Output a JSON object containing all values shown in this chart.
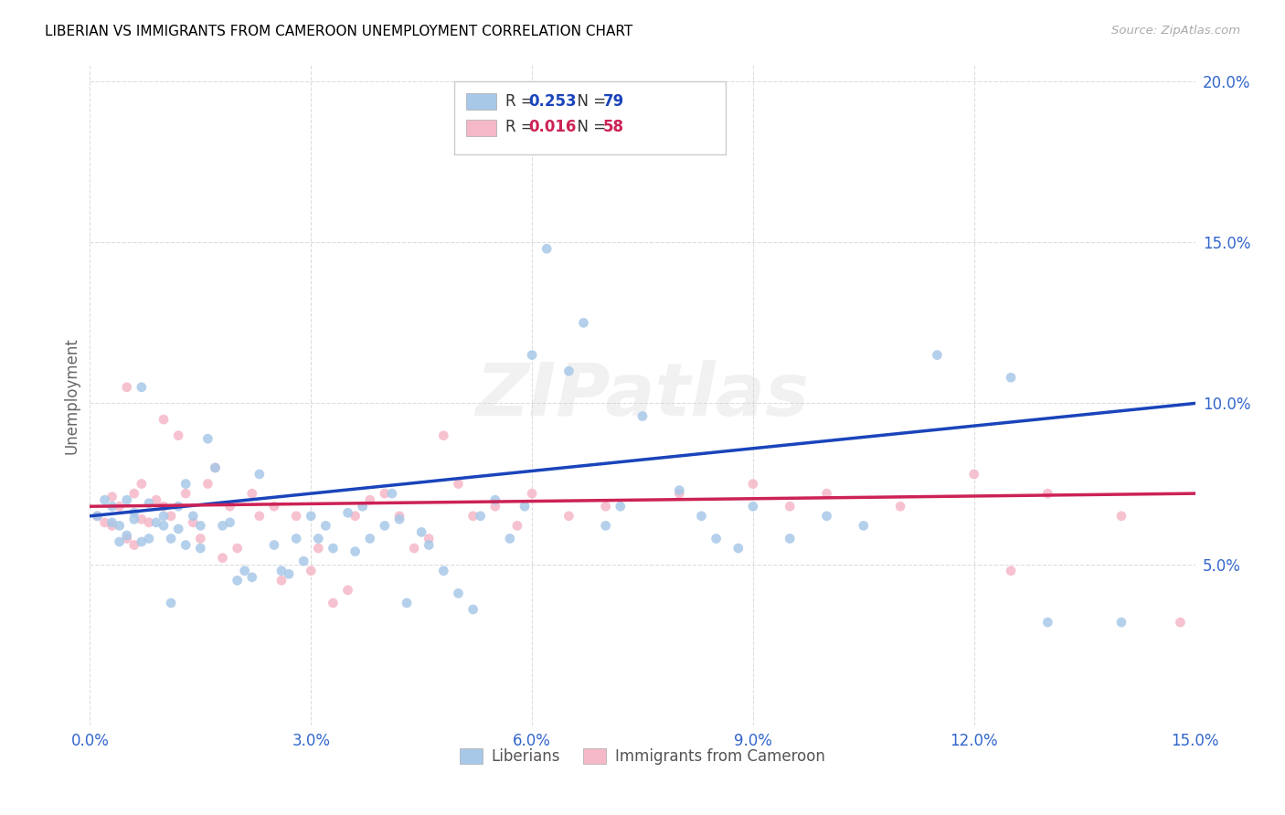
{
  "title": "LIBERIAN VS IMMIGRANTS FROM CAMEROON UNEMPLOYMENT CORRELATION CHART",
  "source": "Source: ZipAtlas.com",
  "ylabel": "Unemployment",
  "xlim": [
    0.0,
    0.15
  ],
  "ylim": [
    0.0,
    0.205
  ],
  "xticks": [
    0.0,
    0.03,
    0.06,
    0.09,
    0.12,
    0.15
  ],
  "xtick_labels": [
    "0.0%",
    "3.0%",
    "6.0%",
    "9.0%",
    "12.0%",
    "15.0%"
  ],
  "yticks_right": [
    0.05,
    0.1,
    0.15,
    0.2
  ],
  "ytick_labels_right": [
    "5.0%",
    "10.0%",
    "15.0%",
    "20.0%"
  ],
  "legend_entries": [
    "Liberians",
    "Immigrants from Cameroon"
  ],
  "r_liberians": 0.253,
  "n_liberians": 79,
  "r_cameroon": 0.016,
  "n_cameroon": 58,
  "color_liberians": "#a8c8e8",
  "color_cameroon": "#f5b8c8",
  "line_color_liberians": "#1a44bb",
  "line_color_cameroon": "#cc2255",
  "marker_size": 60,
  "watermark": "ZIPatlas",
  "lib_trendline_x0": 0.0,
  "lib_trendline_y0": 0.065,
  "lib_trendline_x1": 0.15,
  "lib_trendline_y1": 0.1,
  "cam_trendline_x0": 0.0,
  "cam_trendline_y0": 0.068,
  "cam_trendline_x1": 0.15,
  "cam_trendline_y1": 0.072,
  "liberians_x": [
    0.001,
    0.002,
    0.003,
    0.003,
    0.004,
    0.004,
    0.005,
    0.005,
    0.006,
    0.006,
    0.007,
    0.007,
    0.008,
    0.008,
    0.009,
    0.01,
    0.01,
    0.011,
    0.011,
    0.012,
    0.012,
    0.013,
    0.013,
    0.014,
    0.015,
    0.015,
    0.016,
    0.017,
    0.018,
    0.019,
    0.02,
    0.021,
    0.022,
    0.023,
    0.025,
    0.026,
    0.027,
    0.028,
    0.029,
    0.03,
    0.031,
    0.032,
    0.033,
    0.035,
    0.036,
    0.037,
    0.038,
    0.04,
    0.041,
    0.042,
    0.043,
    0.045,
    0.046,
    0.048,
    0.05,
    0.052,
    0.053,
    0.055,
    0.057,
    0.059,
    0.06,
    0.062,
    0.065,
    0.067,
    0.07,
    0.072,
    0.075,
    0.08,
    0.083,
    0.085,
    0.088,
    0.09,
    0.095,
    0.1,
    0.105,
    0.115,
    0.125,
    0.13,
    0.14
  ],
  "liberians_y": [
    0.065,
    0.07,
    0.068,
    0.063,
    0.062,
    0.057,
    0.059,
    0.07,
    0.064,
    0.066,
    0.057,
    0.105,
    0.069,
    0.058,
    0.063,
    0.062,
    0.065,
    0.058,
    0.038,
    0.061,
    0.068,
    0.075,
    0.056,
    0.065,
    0.062,
    0.055,
    0.089,
    0.08,
    0.062,
    0.063,
    0.045,
    0.048,
    0.046,
    0.078,
    0.056,
    0.048,
    0.047,
    0.058,
    0.051,
    0.065,
    0.058,
    0.062,
    0.055,
    0.066,
    0.054,
    0.068,
    0.058,
    0.062,
    0.072,
    0.064,
    0.038,
    0.06,
    0.056,
    0.048,
    0.041,
    0.036,
    0.065,
    0.07,
    0.058,
    0.068,
    0.115,
    0.148,
    0.11,
    0.125,
    0.062,
    0.068,
    0.096,
    0.073,
    0.065,
    0.058,
    0.055,
    0.068,
    0.058,
    0.065,
    0.062,
    0.115,
    0.108,
    0.032,
    0.032
  ],
  "cameroon_x": [
    0.001,
    0.002,
    0.003,
    0.003,
    0.004,
    0.005,
    0.005,
    0.006,
    0.006,
    0.007,
    0.007,
    0.008,
    0.009,
    0.01,
    0.01,
    0.011,
    0.012,
    0.013,
    0.014,
    0.015,
    0.016,
    0.017,
    0.018,
    0.019,
    0.02,
    0.022,
    0.023,
    0.025,
    0.026,
    0.028,
    0.03,
    0.031,
    0.033,
    0.035,
    0.036,
    0.038,
    0.04,
    0.042,
    0.044,
    0.046,
    0.048,
    0.05,
    0.052,
    0.055,
    0.058,
    0.06,
    0.065,
    0.07,
    0.08,
    0.09,
    0.095,
    0.1,
    0.11,
    0.12,
    0.125,
    0.13,
    0.14,
    0.148
  ],
  "cameroon_y": [
    0.065,
    0.063,
    0.062,
    0.071,
    0.068,
    0.058,
    0.105,
    0.056,
    0.072,
    0.064,
    0.075,
    0.063,
    0.07,
    0.068,
    0.095,
    0.065,
    0.09,
    0.072,
    0.063,
    0.058,
    0.075,
    0.08,
    0.052,
    0.068,
    0.055,
    0.072,
    0.065,
    0.068,
    0.045,
    0.065,
    0.048,
    0.055,
    0.038,
    0.042,
    0.065,
    0.07,
    0.072,
    0.065,
    0.055,
    0.058,
    0.09,
    0.075,
    0.065,
    0.068,
    0.062,
    0.072,
    0.065,
    0.068,
    0.072,
    0.075,
    0.068,
    0.072,
    0.068,
    0.078,
    0.048,
    0.072,
    0.065,
    0.032
  ]
}
